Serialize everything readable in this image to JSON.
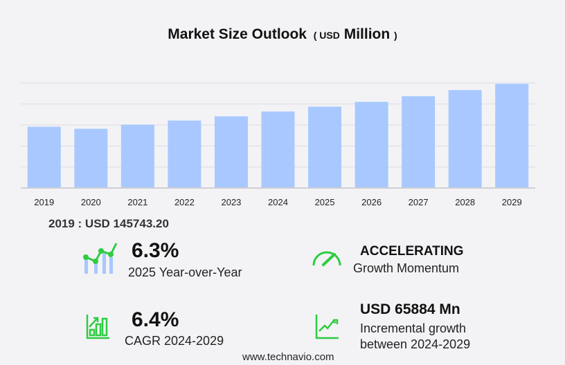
{
  "title": {
    "main": "Market Size Outlook",
    "paren_open": "(",
    "unit": "USD",
    "unit2": "Million",
    "paren_close": ")"
  },
  "chart_data": {
    "type": "bar",
    "title": "Market Size Outlook (USD Million)",
    "categories": [
      "2019",
      "2020",
      "2021",
      "2022",
      "2023",
      "2024",
      "2025",
      "2026",
      "2027",
      "2028",
      "2029"
    ],
    "values": [
      145743.2,
      141000,
      150700,
      160600,
      170600,
      182000,
      193500,
      205000,
      218500,
      233000,
      248000
    ],
    "ylim": [
      0,
      250000
    ],
    "grid": true,
    "bar_color": "#a8c8ff"
  },
  "first_value": "2019 : USD  145743.20",
  "stats": [
    {
      "value": "6.3%",
      "label": "2025 Year-over-Year",
      "icon": "bar-line-growth-icon"
    },
    {
      "value": "ACCELERATING",
      "label": "Growth Momentum",
      "icon": "speedometer-icon"
    },
    {
      "value": "6.4%",
      "label": "CAGR 2024-2029",
      "icon": "bar-chart-arrow-icon"
    },
    {
      "value": "USD 65884 Mn",
      "label": "Incremental growth",
      "label2": "between 2024-2029",
      "icon": "line-chart-up-icon"
    }
  ],
  "footer": "www.technavio.com",
  "colors": {
    "accent": "#2ecc40",
    "bar": "#a8c8ff"
  }
}
